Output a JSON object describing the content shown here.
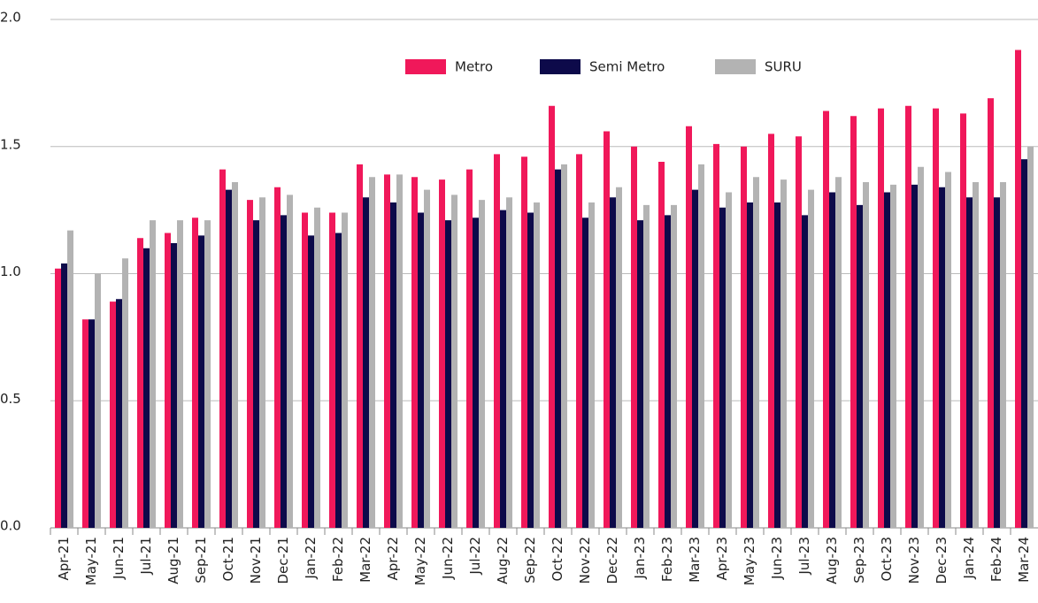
{
  "chart_data": {
    "type": "bar",
    "categories": [
      "Apr-21",
      "May-21",
      "Jun-21",
      "Jul-21",
      "Aug-21",
      "Sep-21",
      "Oct-21",
      "Nov-21",
      "Dec-21",
      "Jan-22",
      "Feb-22",
      "Mar-22",
      "Apr-22",
      "May-22",
      "Jun-22",
      "Jul-22",
      "Aug-22",
      "Sep-22",
      "Oct-22",
      "Nov-22",
      "Dec-22",
      "Jan-23",
      "Feb-23",
      "Mar-23",
      "Apr-23",
      "May-23",
      "Jun-23",
      "Jul-23",
      "Aug-23",
      "Sep-23",
      "Oct-23",
      "Nov-23",
      "Dec-23",
      "Jan-24",
      "Feb-24",
      "Mar-24"
    ],
    "series": [
      {
        "name": "Metro",
        "color": "#f0185a",
        "values": [
          1.02,
          0.82,
          0.89,
          1.14,
          1.16,
          1.22,
          1.41,
          1.29,
          1.34,
          1.24,
          1.24,
          1.43,
          1.39,
          1.38,
          1.37,
          1.41,
          1.47,
          1.46,
          1.66,
          1.47,
          1.56,
          1.5,
          1.44,
          1.58,
          1.51,
          1.5,
          1.55,
          1.54,
          1.64,
          1.62,
          1.65,
          1.66,
          1.65,
          1.63,
          1.69,
          1.88
        ]
      },
      {
        "name": "Semi Metro",
        "color": "#0d0a4a",
        "values": [
          1.04,
          0.82,
          0.9,
          1.1,
          1.12,
          1.15,
          1.33,
          1.21,
          1.23,
          1.15,
          1.16,
          1.3,
          1.28,
          1.24,
          1.21,
          1.22,
          1.25,
          1.24,
          1.41,
          1.22,
          1.3,
          1.21,
          1.23,
          1.33,
          1.26,
          1.28,
          1.28,
          1.23,
          1.32,
          1.27,
          1.32,
          1.35,
          1.34,
          1.3,
          1.3,
          1.45
        ]
      },
      {
        "name": "SURU",
        "color": "#b3b3b3",
        "values": [
          1.17,
          1.0,
          1.06,
          1.21,
          1.21,
          1.21,
          1.36,
          1.3,
          1.31,
          1.26,
          1.24,
          1.38,
          1.39,
          1.33,
          1.31,
          1.29,
          1.3,
          1.28,
          1.43,
          1.28,
          1.34,
          1.27,
          1.27,
          1.43,
          1.32,
          1.38,
          1.37,
          1.33,
          1.38,
          1.36,
          1.35,
          1.42,
          1.4,
          1.36,
          1.36,
          1.5
        ]
      }
    ],
    "ylim": [
      0,
      2
    ],
    "yticks": [
      {
        "value": 0,
        "label": "0.0"
      },
      0.5,
      {
        "value": 1,
        "label": "1.0"
      },
      1.5,
      {
        "value": 2,
        "label": "2.0"
      }
    ],
    "grid": true
  }
}
